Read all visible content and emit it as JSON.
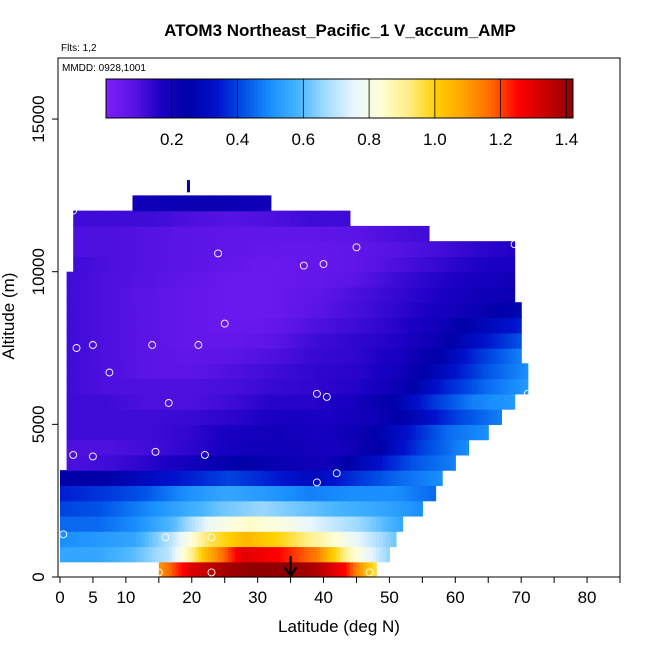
{
  "chart_data": {
    "type": "heatmap",
    "title": "ATOM3 Northeast_Pacific_1 V_accum_AMP",
    "subtitle_flights": "Flts: 1,2",
    "subtitle_dates": "MMDD: 0928,1001",
    "xlabel": "Latitude (deg N)",
    "ylabel": "Altitude (m)",
    "xlim": [
      0,
      85
    ],
    "ylim": [
      0,
      17000
    ],
    "x_ticks": [
      0,
      5,
      10,
      20,
      30,
      40,
      50,
      60,
      70,
      80
    ],
    "y_ticks": [
      0,
      5000,
      10000,
      15000
    ],
    "colorbar": {
      "range": [
        0,
        1.42
      ],
      "ticks": [
        0.2,
        0.4,
        0.6,
        0.8,
        1.0,
        1.2,
        1.4
      ],
      "tick_labels": [
        "0.2",
        "0.4",
        "0.6",
        "0.8",
        "1.0",
        "1.2",
        "1.4"
      ]
    },
    "colormap": [
      "#7f1ff7",
      "#5a14e6",
      "#1b00c4",
      "#0000a8",
      "#0011cc",
      "#0050e6",
      "#1a90ff",
      "#47b5ff",
      "#a3dbff",
      "#e8f6ff",
      "#ffffd6",
      "#ffee88",
      "#ffd000",
      "#ffa500",
      "#ff6a00",
      "#ff0000",
      "#c80000",
      "#900000"
    ],
    "altitude_bins_m": [
      0,
      500,
      1000,
      1500,
      2000,
      2500,
      3000,
      3500,
      4000,
      4500,
      5000,
      5500,
      6000,
      6500,
      7000,
      7500,
      8000,
      8500,
      9000,
      9500,
      10000,
      10500,
      11000,
      11500,
      12000
    ],
    "rows": [
      {
        "alt": 0,
        "x0": 15,
        "x1": 48,
        "v": [
          1.1,
          1.3,
          1.38,
          1.42,
          1.42,
          1.38,
          1.25,
          0.95
        ]
      },
      {
        "alt": 500,
        "x0": 0,
        "x1": 50,
        "v": [
          0.55,
          0.55,
          0.6,
          0.7,
          1.05,
          1.3,
          1.25,
          1.15,
          0.85,
          0.65
        ]
      },
      {
        "alt": 1000,
        "x0": 0,
        "x1": 51,
        "v": [
          0.5,
          0.52,
          0.55,
          0.7,
          0.95,
          1.05,
          0.98,
          0.88,
          0.75,
          0.62
        ]
      },
      {
        "alt": 1500,
        "x0": 0,
        "x1": 52,
        "v": [
          0.45,
          0.45,
          0.5,
          0.6,
          0.78,
          0.85,
          0.8,
          0.72,
          0.65,
          0.55
        ]
      },
      {
        "alt": 2000,
        "x0": 0,
        "x1": 55,
        "v": [
          0.4,
          0.42,
          0.48,
          0.55,
          0.62,
          0.66,
          0.62,
          0.58,
          0.55,
          0.5
        ]
      },
      {
        "alt": 2500,
        "x0": 0,
        "x1": 57,
        "v": [
          0.35,
          0.38,
          0.42,
          0.5,
          0.55,
          0.52,
          0.48,
          0.5,
          0.5,
          0.45
        ]
      },
      {
        "alt": 3000,
        "x0": 0,
        "x1": 58,
        "v": [
          0.25,
          0.25,
          0.3,
          0.35,
          0.4,
          0.35,
          0.3,
          0.38,
          0.45,
          0.5
        ]
      },
      {
        "alt": 3500,
        "x0": 1,
        "x1": 60,
        "v": [
          0.1,
          0.12,
          0.15,
          0.2,
          0.25,
          0.22,
          0.2,
          0.3,
          0.42,
          0.48
        ]
      },
      {
        "alt": 4000,
        "x0": 1,
        "x1": 62,
        "v": [
          0.1,
          0.1,
          0.12,
          0.15,
          0.2,
          0.2,
          0.18,
          0.25,
          0.4,
          0.5
        ]
      },
      {
        "alt": 4500,
        "x0": 1,
        "x1": 65,
        "v": [
          0.12,
          0.12,
          0.12,
          0.14,
          0.18,
          0.2,
          0.18,
          0.22,
          0.32,
          0.45,
          0.5
        ]
      },
      {
        "alt": 5000,
        "x0": 1,
        "x1": 67,
        "v": [
          0.12,
          0.12,
          0.12,
          0.13,
          0.15,
          0.18,
          0.17,
          0.2,
          0.28,
          0.4,
          0.48
        ]
      },
      {
        "alt": 5500,
        "x0": 1,
        "x1": 69,
        "v": [
          0.12,
          0.12,
          0.1,
          0.1,
          0.12,
          0.15,
          0.15,
          0.18,
          0.25,
          0.38,
          0.48,
          0.52
        ]
      },
      {
        "alt": 6000,
        "x0": 1,
        "x1": 71,
        "v": [
          0.12,
          0.1,
          0.1,
          0.1,
          0.11,
          0.13,
          0.14,
          0.16,
          0.22,
          0.35,
          0.45,
          0.52
        ]
      },
      {
        "alt": 6500,
        "x0": 1,
        "x1": 71,
        "v": [
          0.12,
          0.1,
          0.08,
          0.08,
          0.1,
          0.12,
          0.14,
          0.15,
          0.2,
          0.3,
          0.42,
          0.5
        ]
      },
      {
        "alt": 7000,
        "x0": 1,
        "x1": 70,
        "v": [
          0.12,
          0.1,
          0.08,
          0.07,
          0.08,
          0.1,
          0.13,
          0.14,
          0.18,
          0.25,
          0.38,
          0.48
        ]
      },
      {
        "alt": 7500,
        "x0": 1,
        "x1": 70,
        "v": [
          0.12,
          0.1,
          0.08,
          0.06,
          0.06,
          0.08,
          0.12,
          0.14,
          0.16,
          0.22,
          0.32,
          0.42
        ]
      },
      {
        "alt": 8000,
        "x0": 1,
        "x1": 70,
        "v": [
          0.12,
          0.1,
          0.08,
          0.06,
          0.05,
          0.06,
          0.1,
          0.12,
          0.15,
          0.2,
          0.28,
          0.35
        ]
      },
      {
        "alt": 8500,
        "x0": 1,
        "x1": 70,
        "v": [
          0.12,
          0.1,
          0.08,
          0.06,
          0.05,
          0.05,
          0.08,
          0.11,
          0.14,
          0.18,
          0.22,
          0.28
        ]
      },
      {
        "alt": 9000,
        "x0": 1,
        "x1": 69,
        "v": [
          0.12,
          0.1,
          0.08,
          0.06,
          0.05,
          0.05,
          0.07,
          0.1,
          0.13,
          0.16,
          0.2,
          0.22
        ]
      },
      {
        "alt": 9500,
        "x0": 1,
        "x1": 69,
        "v": [
          0.12,
          0.1,
          0.09,
          0.07,
          0.05,
          0.05,
          0.06,
          0.08,
          0.12,
          0.15,
          0.18,
          0.2
        ]
      },
      {
        "alt": 10000,
        "x0": 2,
        "x1": 69,
        "v": [
          0.12,
          0.1,
          0.09,
          0.08,
          0.06,
          0.05,
          0.06,
          0.07,
          0.1,
          0.13,
          0.16,
          0.18
        ]
      },
      {
        "alt": 10500,
        "x0": 2,
        "x1": 69,
        "v": [
          0.1,
          0.1,
          0.09,
          0.08,
          0.07,
          0.06,
          0.06,
          0.07,
          0.09,
          0.11,
          0.14,
          0.16
        ]
      },
      {
        "alt": 11000,
        "x0": 2,
        "x1": 56,
        "v": [
          0.1,
          0.1,
          0.09,
          0.08,
          0.07,
          0.07,
          0.07,
          0.08,
          0.1,
          0.12
        ]
      },
      {
        "alt": 11500,
        "x0": 2,
        "x1": 44,
        "v": [
          0.12,
          0.12,
          0.12,
          0.1,
          0.09,
          0.1,
          0.12,
          0.12
        ]
      },
      {
        "alt": 12000,
        "x0": 11,
        "x1": 32,
        "v": [
          0.2,
          0.22,
          0.22,
          0.2
        ]
      }
    ],
    "observations": [
      [
        2,
        12000
      ],
      [
        24,
        10600
      ],
      [
        45,
        10800
      ],
      [
        37,
        10200
      ],
      [
        40,
        10250
      ],
      [
        69,
        10900
      ],
      [
        2.5,
        7500
      ],
      [
        5,
        7600
      ],
      [
        14,
        7600
      ],
      [
        21,
        7600
      ],
      [
        25,
        8300
      ],
      [
        7.5,
        6700
      ],
      [
        16.5,
        5700
      ],
      [
        39,
        6000
      ],
      [
        40.5,
        5900
      ],
      [
        71,
        6000
      ],
      [
        2,
        4000
      ],
      [
        5,
        3950
      ],
      [
        14.5,
        4100
      ],
      [
        22,
        4000
      ],
      [
        39,
        3100
      ],
      [
        42,
        3400
      ],
      [
        0.5,
        1400
      ],
      [
        16,
        1300
      ],
      [
        23,
        1300
      ],
      [
        15,
        150
      ],
      [
        23,
        150
      ],
      [
        47,
        150
      ]
    ],
    "arrow_marker": {
      "x": 35,
      "label": "down arrow"
    },
    "top_marker": {
      "x": 19.5,
      "y": 12700
    }
  }
}
